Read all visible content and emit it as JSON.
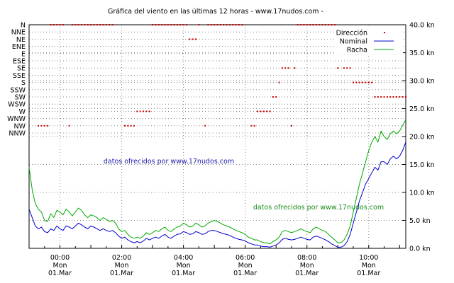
{
  "chart_data": {
    "type": "line",
    "title": "Gráfica del viento en las últimas 12 horas - www.17nudos.com -",
    "watermarks": [
      "datos ofrecidos por www.17nudos.com",
      "datos ofrecidos por www.17nudos.com"
    ],
    "x_range": [
      -1.0,
      11.2
    ],
    "x_ticks": [
      {
        "x": 0,
        "lines": [
          "00:00",
          "Mon",
          "01.Mar"
        ]
      },
      {
        "x": 2,
        "lines": [
          "02:00",
          "Mon",
          "01.Mar"
        ]
      },
      {
        "x": 4,
        "lines": [
          "04:00",
          "Mon",
          "01.Mar"
        ]
      },
      {
        "x": 6,
        "lines": [
          "06:00",
          "Mon",
          "01.Mar"
        ]
      },
      {
        "x": 8,
        "lines": [
          "08:00",
          "Mon",
          "01.Mar"
        ]
      },
      {
        "x": 10,
        "lines": [
          "10:00",
          "Mon",
          "01.Mar"
        ]
      }
    ],
    "y_right": {
      "unit": "kn",
      "ylim": [
        0,
        40
      ],
      "ticks": [
        "0.0 kn",
        "5.0 kn",
        "10.0 kn",
        "15.0 kn",
        "20.0 kn",
        "25.0 kn",
        "30.0 kn",
        "35.0 kn",
        "40.0 kn"
      ]
    },
    "y_left": {
      "directions": [
        "N",
        "NNE",
        "NE",
        "ENE",
        "E",
        "ESE",
        "SE",
        "SSE",
        "S",
        "SSW",
        "SW",
        "WSW",
        "W",
        "WNW",
        "NW",
        "NNW"
      ]
    },
    "legend": {
      "position": "top-right",
      "entries": [
        {
          "label": "Dirección",
          "color": "#cc0000",
          "marker": "dot"
        },
        {
          "label": "Nominal",
          "color": "#0000cc",
          "marker": "line"
        },
        {
          "label": "Racha",
          "color": "#00aa00",
          "marker": "line"
        }
      ]
    },
    "colors": {
      "direction": "#cc0000",
      "nominal": "#0000cc",
      "gust": "#00aa00",
      "grid": "#888888"
    },
    "series": [
      {
        "name": "Racha",
        "color": "#00aa00",
        "x": [
          -1.0,
          -0.9,
          -0.8,
          -0.7,
          -0.6,
          -0.5,
          -0.4,
          -0.3,
          -0.2,
          -0.1,
          0.0,
          0.1,
          0.2,
          0.3,
          0.4,
          0.5,
          0.6,
          0.7,
          0.8,
          0.9,
          1.0,
          1.1,
          1.2,
          1.3,
          1.4,
          1.5,
          1.6,
          1.7,
          1.8,
          1.9,
          2.0,
          2.1,
          2.2,
          2.3,
          2.4,
          2.5,
          2.6,
          2.7,
          2.8,
          2.9,
          3.0,
          3.1,
          3.2,
          3.3,
          3.4,
          3.5,
          3.6,
          3.7,
          3.8,
          3.9,
          4.0,
          4.1,
          4.2,
          4.3,
          4.4,
          4.5,
          4.6,
          4.7,
          4.8,
          4.9,
          5.0,
          5.1,
          5.2,
          5.3,
          5.4,
          5.5,
          5.6,
          5.7,
          5.8,
          5.9,
          6.0,
          6.1,
          6.2,
          6.3,
          6.4,
          6.5,
          6.6,
          6.7,
          6.8,
          6.9,
          7.0,
          7.1,
          7.2,
          7.3,
          7.4,
          7.5,
          7.6,
          7.7,
          7.8,
          7.9,
          8.0,
          8.1,
          8.2,
          8.3,
          8.4,
          8.5,
          8.6,
          8.7,
          8.8,
          8.9,
          9.0,
          9.1,
          9.2,
          9.3,
          9.4,
          9.5,
          9.6,
          9.7,
          9.8,
          9.9,
          10.0,
          10.1,
          10.2,
          10.3,
          10.4,
          10.5,
          10.6,
          10.7,
          10.8,
          10.9,
          11.0,
          11.1,
          11.2
        ],
        "values": [
          14.5,
          10.5,
          8.0,
          7.0,
          6.5,
          5.0,
          4.8,
          6.2,
          5.5,
          6.8,
          6.5,
          6.0,
          7.0,
          6.5,
          5.8,
          6.5,
          7.2,
          6.8,
          6.0,
          5.5,
          6.0,
          5.8,
          5.5,
          5.0,
          5.5,
          5.2,
          4.8,
          5.0,
          4.5,
          3.5,
          3.0,
          3.2,
          2.5,
          2.0,
          1.8,
          2.0,
          1.8,
          2.2,
          2.8,
          2.5,
          2.8,
          3.2,
          3.0,
          3.5,
          3.8,
          3.2,
          3.0,
          3.5,
          3.8,
          4.0,
          4.5,
          4.2,
          3.8,
          4.0,
          4.5,
          4.2,
          3.8,
          4.0,
          4.5,
          4.8,
          5.0,
          4.8,
          4.5,
          4.2,
          4.0,
          3.8,
          3.5,
          3.2,
          3.0,
          2.8,
          2.5,
          2.0,
          1.8,
          1.5,
          1.5,
          1.2,
          1.0,
          1.0,
          0.8,
          1.2,
          1.5,
          2.0,
          3.0,
          3.2,
          3.0,
          2.8,
          3.0,
          3.2,
          3.5,
          3.2,
          3.0,
          2.8,
          3.5,
          3.8,
          3.5,
          3.2,
          3.0,
          2.5,
          2.0,
          1.5,
          1.0,
          1.0,
          1.5,
          2.5,
          4.0,
          6.5,
          9.0,
          11.5,
          13.5,
          15.5,
          17.5,
          19.0,
          20.0,
          19.0,
          21.0,
          20.0,
          19.5,
          20.5,
          21.0,
          20.5,
          21.0,
          22.0,
          23.0
        ]
      },
      {
        "name": "Nominal",
        "color": "#0000cc",
        "x": [
          -1.0,
          -0.9,
          -0.8,
          -0.7,
          -0.6,
          -0.5,
          -0.4,
          -0.3,
          -0.2,
          -0.1,
          0.0,
          0.1,
          0.2,
          0.3,
          0.4,
          0.5,
          0.6,
          0.7,
          0.8,
          0.9,
          1.0,
          1.1,
          1.2,
          1.3,
          1.4,
          1.5,
          1.6,
          1.7,
          1.8,
          1.9,
          2.0,
          2.1,
          2.2,
          2.3,
          2.4,
          2.5,
          2.6,
          2.7,
          2.8,
          2.9,
          3.0,
          3.1,
          3.2,
          3.3,
          3.4,
          3.5,
          3.6,
          3.7,
          3.8,
          3.9,
          4.0,
          4.1,
          4.2,
          4.3,
          4.4,
          4.5,
          4.6,
          4.7,
          4.8,
          4.9,
          5.0,
          5.1,
          5.2,
          5.3,
          5.4,
          5.5,
          5.6,
          5.7,
          5.8,
          5.9,
          6.0,
          6.1,
          6.2,
          6.3,
          6.4,
          6.5,
          6.6,
          6.7,
          6.8,
          6.9,
          7.0,
          7.1,
          7.2,
          7.3,
          7.4,
          7.5,
          7.6,
          7.7,
          7.8,
          7.9,
          8.0,
          8.1,
          8.2,
          8.3,
          8.4,
          8.5,
          8.6,
          8.7,
          8.8,
          8.9,
          9.0,
          9.1,
          9.2,
          9.3,
          9.4,
          9.5,
          9.6,
          9.7,
          9.8,
          9.9,
          10.0,
          10.1,
          10.2,
          10.3,
          10.4,
          10.5,
          10.6,
          10.7,
          10.8,
          10.9,
          11.0,
          11.1,
          11.2
        ],
        "values": [
          7.0,
          5.5,
          4.0,
          3.5,
          3.8,
          3.0,
          2.8,
          3.5,
          3.2,
          4.0,
          3.5,
          3.2,
          4.0,
          3.8,
          3.5,
          4.0,
          4.5,
          4.2,
          3.8,
          3.5,
          4.0,
          3.8,
          3.5,
          3.2,
          3.5,
          3.2,
          3.0,
          3.2,
          2.8,
          2.2,
          1.8,
          2.0,
          1.5,
          1.2,
          1.0,
          1.2,
          1.0,
          1.3,
          1.8,
          1.5,
          1.8,
          2.0,
          1.8,
          2.2,
          2.5,
          2.0,
          1.8,
          2.2,
          2.5,
          2.6,
          3.0,
          2.8,
          2.5,
          2.6,
          3.0,
          2.8,
          2.5,
          2.6,
          3.0,
          3.2,
          3.2,
          3.0,
          2.8,
          2.6,
          2.5,
          2.3,
          2.0,
          1.8,
          1.6,
          1.5,
          1.3,
          1.0,
          0.8,
          0.6,
          0.6,
          0.4,
          0.3,
          0.3,
          0.2,
          0.4,
          0.6,
          1.0,
          1.6,
          1.8,
          1.6,
          1.5,
          1.6,
          1.8,
          2.0,
          1.8,
          1.6,
          1.5,
          2.0,
          2.2,
          2.0,
          1.8,
          1.5,
          1.2,
          0.8,
          0.5,
          0.2,
          0.2,
          0.5,
          1.2,
          2.5,
          4.5,
          6.5,
          8.5,
          10.0,
          11.5,
          12.5,
          13.5,
          14.5,
          14.0,
          15.5,
          15.5,
          15.0,
          16.0,
          16.5,
          16.0,
          16.5,
          17.5,
          19.0
        ]
      }
    ],
    "directions": {
      "name": "Dirección",
      "color": "#cc0000",
      "points": [
        {
          "x": -0.7,
          "dir": "NW"
        },
        {
          "x": -0.6,
          "dir": "NW"
        },
        {
          "x": -0.5,
          "dir": "NW"
        },
        {
          "x": -0.4,
          "dir": "NW"
        },
        {
          "x": -0.3,
          "dir": "N"
        },
        {
          "x": -0.2,
          "dir": "N"
        },
        {
          "x": -0.1,
          "dir": "N"
        },
        {
          "x": 0.0,
          "dir": "N"
        },
        {
          "x": 0.1,
          "dir": "N"
        },
        {
          "x": 0.3,
          "dir": "NW"
        },
        {
          "x": 0.4,
          "dir": "N"
        },
        {
          "x": 0.5,
          "dir": "N"
        },
        {
          "x": 0.6,
          "dir": "N"
        },
        {
          "x": 0.7,
          "dir": "N"
        },
        {
          "x": 0.8,
          "dir": "N"
        },
        {
          "x": 0.9,
          "dir": "N"
        },
        {
          "x": 1.0,
          "dir": "N"
        },
        {
          "x": 1.1,
          "dir": "N"
        },
        {
          "x": 1.2,
          "dir": "N"
        },
        {
          "x": 1.3,
          "dir": "N"
        },
        {
          "x": 1.4,
          "dir": "N"
        },
        {
          "x": 1.5,
          "dir": "N"
        },
        {
          "x": 1.6,
          "dir": "N"
        },
        {
          "x": 1.7,
          "dir": "N"
        },
        {
          "x": 2.1,
          "dir": "NW"
        },
        {
          "x": 2.2,
          "dir": "NW"
        },
        {
          "x": 2.3,
          "dir": "NW"
        },
        {
          "x": 2.4,
          "dir": "NW"
        },
        {
          "x": 2.5,
          "dir": "W"
        },
        {
          "x": 2.6,
          "dir": "W"
        },
        {
          "x": 2.7,
          "dir": "W"
        },
        {
          "x": 2.8,
          "dir": "W"
        },
        {
          "x": 2.9,
          "dir": "W"
        },
        {
          "x": 3.0,
          "dir": "N"
        },
        {
          "x": 3.1,
          "dir": "N"
        },
        {
          "x": 3.2,
          "dir": "N"
        },
        {
          "x": 3.3,
          "dir": "N"
        },
        {
          "x": 3.4,
          "dir": "N"
        },
        {
          "x": 3.5,
          "dir": "N"
        },
        {
          "x": 3.6,
          "dir": "N"
        },
        {
          "x": 3.7,
          "dir": "N"
        },
        {
          "x": 3.8,
          "dir": "N"
        },
        {
          "x": 3.9,
          "dir": "N"
        },
        {
          "x": 4.0,
          "dir": "N"
        },
        {
          "x": 4.1,
          "dir": "N"
        },
        {
          "x": 4.2,
          "dir": "NE"
        },
        {
          "x": 4.3,
          "dir": "NE"
        },
        {
          "x": 4.4,
          "dir": "NE"
        },
        {
          "x": 4.5,
          "dir": "N"
        },
        {
          "x": 4.7,
          "dir": "NW"
        },
        {
          "x": 4.8,
          "dir": "N"
        },
        {
          "x": 4.9,
          "dir": "N"
        },
        {
          "x": 5.0,
          "dir": "N"
        },
        {
          "x": 5.1,
          "dir": "N"
        },
        {
          "x": 5.2,
          "dir": "N"
        },
        {
          "x": 5.3,
          "dir": "N"
        },
        {
          "x": 5.4,
          "dir": "N"
        },
        {
          "x": 5.5,
          "dir": "N"
        },
        {
          "x": 5.6,
          "dir": "N"
        },
        {
          "x": 5.7,
          "dir": "N"
        },
        {
          "x": 5.8,
          "dir": "N"
        },
        {
          "x": 5.9,
          "dir": "N"
        },
        {
          "x": 6.2,
          "dir": "NW"
        },
        {
          "x": 6.3,
          "dir": "NW"
        },
        {
          "x": 6.4,
          "dir": "W"
        },
        {
          "x": 6.5,
          "dir": "W"
        },
        {
          "x": 6.6,
          "dir": "W"
        },
        {
          "x": 6.7,
          "dir": "W"
        },
        {
          "x": 6.8,
          "dir": "W"
        },
        {
          "x": 6.9,
          "dir": "SW"
        },
        {
          "x": 7.0,
          "dir": "SW"
        },
        {
          "x": 7.1,
          "dir": "S"
        },
        {
          "x": 7.2,
          "dir": "SE"
        },
        {
          "x": 7.3,
          "dir": "SE"
        },
        {
          "x": 7.4,
          "dir": "SE"
        },
        {
          "x": 7.5,
          "dir": "NW"
        },
        {
          "x": 7.6,
          "dir": "SE"
        },
        {
          "x": 7.7,
          "dir": "N"
        },
        {
          "x": 7.8,
          "dir": "N"
        },
        {
          "x": 7.9,
          "dir": "N"
        },
        {
          "x": 8.0,
          "dir": "N"
        },
        {
          "x": 8.1,
          "dir": "N"
        },
        {
          "x": 8.2,
          "dir": "N"
        },
        {
          "x": 8.3,
          "dir": "N"
        },
        {
          "x": 8.4,
          "dir": "N"
        },
        {
          "x": 8.5,
          "dir": "N"
        },
        {
          "x": 8.6,
          "dir": "N"
        },
        {
          "x": 8.7,
          "dir": "N"
        },
        {
          "x": 8.8,
          "dir": "N"
        },
        {
          "x": 8.9,
          "dir": "N"
        },
        {
          "x": 9.0,
          "dir": "SE"
        },
        {
          "x": 9.2,
          "dir": "SE"
        },
        {
          "x": 9.3,
          "dir": "SE"
        },
        {
          "x": 9.4,
          "dir": "SE"
        },
        {
          "x": 9.5,
          "dir": "S"
        },
        {
          "x": 9.6,
          "dir": "S"
        },
        {
          "x": 9.7,
          "dir": "S"
        },
        {
          "x": 9.8,
          "dir": "S"
        },
        {
          "x": 9.9,
          "dir": "S"
        },
        {
          "x": 10.0,
          "dir": "S"
        },
        {
          "x": 10.1,
          "dir": "S"
        },
        {
          "x": 10.2,
          "dir": "SW"
        },
        {
          "x": 10.3,
          "dir": "SW"
        },
        {
          "x": 10.4,
          "dir": "SW"
        },
        {
          "x": 10.5,
          "dir": "SW"
        },
        {
          "x": 10.6,
          "dir": "SW"
        },
        {
          "x": 10.7,
          "dir": "SW"
        },
        {
          "x": 10.8,
          "dir": "SW"
        },
        {
          "x": 10.9,
          "dir": "SW"
        },
        {
          "x": 11.0,
          "dir": "SW"
        },
        {
          "x": 11.1,
          "dir": "SW"
        },
        {
          "x": 11.2,
          "dir": "SW"
        }
      ]
    }
  }
}
